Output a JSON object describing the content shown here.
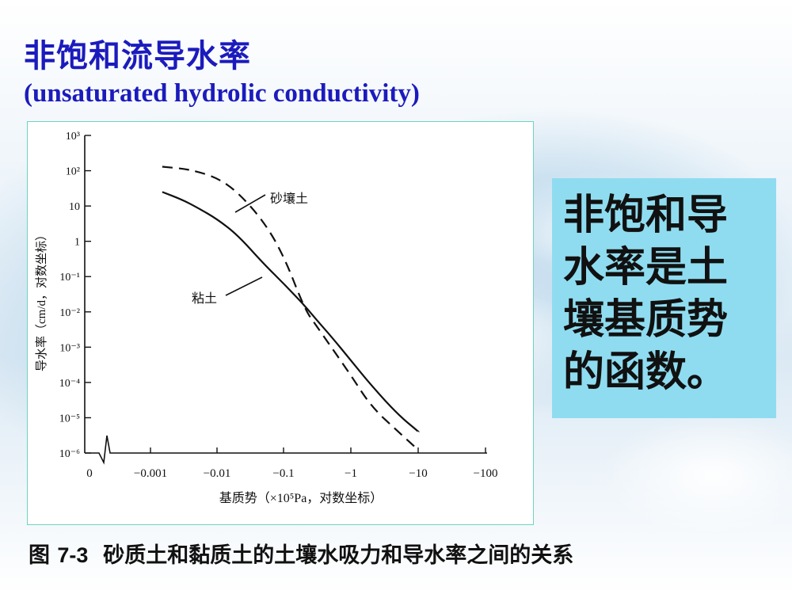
{
  "slide": {
    "title_zh": "非饱和流导水率",
    "title_en": "(unsaturated hydrolic conductivity)",
    "callout": "非饱和导水率是土壤基质势的函数。",
    "caption_prefix": "图",
    "caption_number": "7-3",
    "caption_text": "砂质土和黏质土的土壤水吸力和导水率之间的关系"
  },
  "chart_data": {
    "type": "line",
    "xlabel": "基质势（×10⁵Pa，对数坐标）",
    "ylabel": "导水率（cm/d，对数坐标）",
    "x_ticks": [
      "0",
      "−0.001",
      "−0.01",
      "−0.1",
      "−1",
      "−10",
      "−100"
    ],
    "y_ticks": [
      "10³",
      "10²",
      "10",
      "1",
      "10⁻¹",
      "10⁻²",
      "10⁻³",
      "10⁻⁴",
      "10⁻⁵",
      "10⁻⁶"
    ],
    "y_scale": "log",
    "x_scale": "log",
    "series": [
      {
        "name": "砂壤土",
        "style": "dashed",
        "x": [
          -0.0015,
          -0.003,
          -0.005,
          -0.01,
          -0.02,
          -0.05,
          -0.1,
          -0.2,
          -0.3,
          -0.5,
          -1,
          -2,
          -5,
          -10
        ],
        "y": [
          130,
          115,
          95,
          62,
          25,
          3.5,
          0.35,
          0.012,
          0.004,
          0.001,
          0.00015,
          2e-05,
          4e-06,
          1.2e-06
        ]
      },
      {
        "name": "粘土",
        "style": "solid",
        "x": [
          -0.0015,
          -0.003,
          -0.005,
          -0.01,
          -0.02,
          -0.05,
          -0.1,
          -0.2,
          -0.3,
          -0.5,
          -1,
          -2,
          -5,
          -10
        ],
        "y": [
          25,
          15,
          9,
          4.2,
          1.5,
          0.22,
          0.06,
          0.015,
          0.006,
          0.002,
          0.0004,
          8e-05,
          1.2e-05,
          4e-06
        ]
      }
    ]
  }
}
